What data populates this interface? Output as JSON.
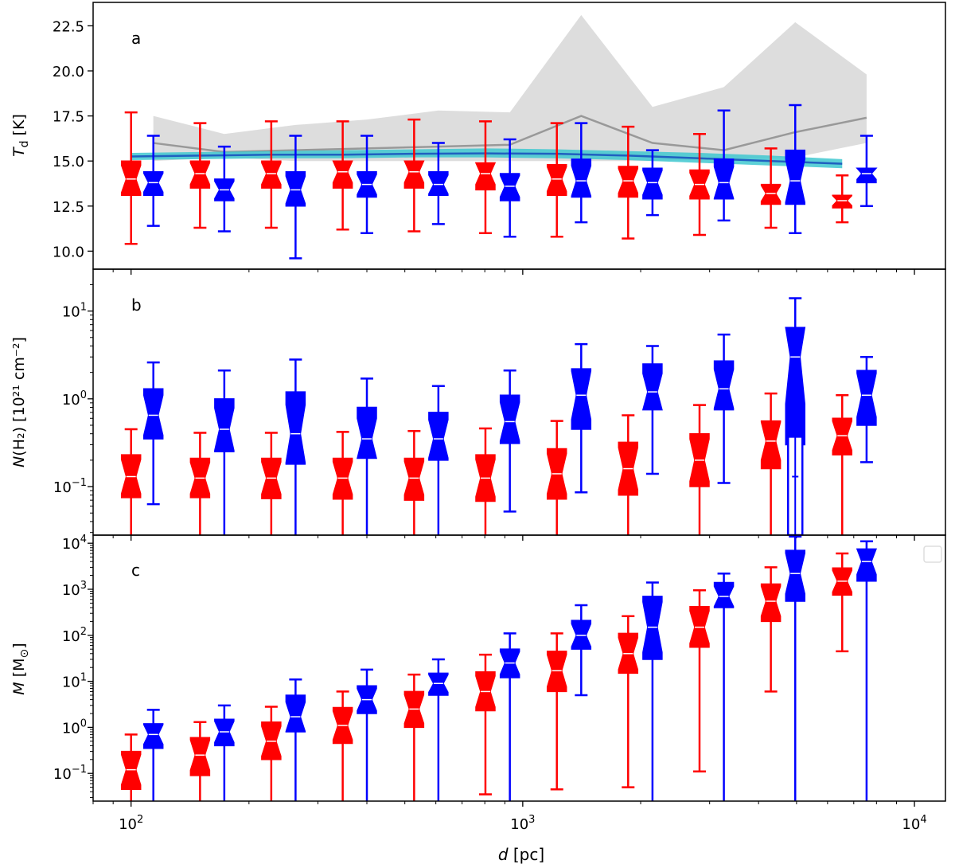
{
  "chart_data": {
    "type": "boxplot",
    "shared_x": {
      "label_var": "d",
      "label_unit": "[pc]",
      "scale": "log",
      "range": [
        80,
        12000
      ],
      "ticks": [
        100,
        1000,
        10000
      ],
      "tick_labels": [
        {
          "base": "10",
          "exp": "2"
        },
        {
          "base": "10",
          "exp": "3"
        },
        {
          "base": "10",
          "exp": "4"
        }
      ]
    },
    "colors": {
      "red": "#ff0000",
      "blue": "#0000ff",
      "gray": "#999999",
      "band": "#dddddd",
      "cyan": "#40c8d0",
      "darkblue": "#2060c0"
    },
    "panels": [
      {
        "id": "a",
        "label": "a",
        "ylabel_var": "T",
        "ylabel_sub": "d",
        "ylabel_unit": "[K]",
        "yscale": "linear",
        "ylim": [
          9.0,
          23.8
        ],
        "yticks": [
          10.0,
          12.5,
          15.0,
          17.5,
          20.0,
          22.5
        ],
        "ytick_labels": [
          "10.0",
          "12.5",
          "15.0",
          "17.5",
          "20.0",
          "22.5"
        ],
        "red": [
          {
            "d": 100,
            "whislo": 10.4,
            "q1": 13.1,
            "med": 14.0,
            "q3": 15.0,
            "whishi": 17.7
          },
          {
            "d": 150,
            "whislo": 11.3,
            "q1": 13.5,
            "med": 14.3,
            "q3": 15.0,
            "whishi": 17.1
          },
          {
            "d": 228,
            "whislo": 11.3,
            "q1": 13.5,
            "med": 14.3,
            "q3": 15.0,
            "whishi": 17.2
          },
          {
            "d": 347,
            "whislo": 11.2,
            "q1": 13.5,
            "med": 14.4,
            "q3": 15.0,
            "whishi": 17.2
          },
          {
            "d": 528,
            "whislo": 11.1,
            "q1": 13.5,
            "med": 14.4,
            "q3": 15.0,
            "whishi": 17.3
          },
          {
            "d": 803,
            "whislo": 11.0,
            "q1": 13.4,
            "med": 14.3,
            "q3": 14.9,
            "whishi": 17.2
          },
          {
            "d": 1222,
            "whislo": 10.8,
            "q1": 13.1,
            "med": 14.0,
            "q3": 14.8,
            "whishi": 17.1
          },
          {
            "d": 1858,
            "whislo": 10.7,
            "q1": 13.0,
            "med": 13.9,
            "q3": 14.7,
            "whishi": 16.9
          },
          {
            "d": 2827,
            "whislo": 10.9,
            "q1": 12.9,
            "med": 13.7,
            "q3": 14.5,
            "whishi": 16.5
          },
          {
            "d": 4300,
            "whislo": 11.3,
            "q1": 12.6,
            "med": 13.2,
            "q3": 13.7,
            "whishi": 15.7
          },
          {
            "d": 6540,
            "whislo": 11.6,
            "q1": 12.4,
            "med": 12.8,
            "q3": 13.1,
            "whishi": 14.2
          }
        ],
        "blue": [
          {
            "d": 114,
            "whislo": 11.4,
            "q1": 13.1,
            "med": 13.8,
            "q3": 14.4,
            "whishi": 16.4
          },
          {
            "d": 173,
            "whislo": 11.1,
            "q1": 12.8,
            "med": 13.4,
            "q3": 14.0,
            "whishi": 15.8
          },
          {
            "d": 263,
            "whislo": 9.6,
            "q1": 12.5,
            "med": 13.4,
            "q3": 14.4,
            "whishi": 16.4
          },
          {
            "d": 400,
            "whislo": 11.0,
            "q1": 13.0,
            "med": 13.7,
            "q3": 14.4,
            "whishi": 16.4
          },
          {
            "d": 609,
            "whislo": 11.5,
            "q1": 13.1,
            "med": 13.7,
            "q3": 14.4,
            "whishi": 16.0
          },
          {
            "d": 927,
            "whislo": 10.8,
            "q1": 12.8,
            "med": 13.6,
            "q3": 14.3,
            "whishi": 16.2
          },
          {
            "d": 1410,
            "whislo": 11.6,
            "q1": 13.0,
            "med": 13.9,
            "q3": 15.1,
            "whishi": 17.1
          },
          {
            "d": 2144,
            "whislo": 12.0,
            "q1": 12.9,
            "med": 13.8,
            "q3": 14.6,
            "whishi": 15.6
          },
          {
            "d": 3262,
            "whislo": 11.7,
            "q1": 12.9,
            "med": 13.8,
            "q3": 15.1,
            "whishi": 17.8
          },
          {
            "d": 4962,
            "whislo": 11.0,
            "q1": 12.6,
            "med": 13.9,
            "q3": 15.6,
            "whishi": 18.1
          },
          {
            "d": 7548,
            "whislo": 12.5,
            "q1": 13.8,
            "med": 14.3,
            "q3": 14.6,
            "whishi": 16.4
          }
        ],
        "gray_band": {
          "d": [
            114,
            173,
            263,
            400,
            609,
            927,
            1410,
            2144,
            3262,
            4962,
            7548
          ],
          "lower": [
            15.0,
            15.2,
            15.0,
            15.0,
            15.0,
            15.0,
            15.0,
            15.0,
            15.1,
            15.2,
            16.0
          ],
          "upper": [
            17.5,
            16.5,
            17.0,
            17.3,
            17.8,
            17.7,
            23.1,
            18.0,
            19.1,
            22.7,
            19.8
          ]
        },
        "gray_line": {
          "d": [
            114,
            173,
            263,
            400,
            609,
            927,
            1410,
            2144,
            3262,
            4962,
            7548
          ],
          "y": [
            16.0,
            15.5,
            15.6,
            15.7,
            15.8,
            15.9,
            17.5,
            16.0,
            15.6,
            16.6,
            17.4
          ]
        },
        "cyan_band": {
          "d": [
            100,
            150,
            228,
            347,
            528,
            803,
            1222,
            1858,
            2827,
            4300,
            6540
          ],
          "lower": [
            15.05,
            15.1,
            15.15,
            15.15,
            15.2,
            15.2,
            15.15,
            15.05,
            14.9,
            14.75,
            14.6
          ],
          "upper": [
            15.45,
            15.5,
            15.55,
            15.6,
            15.65,
            15.7,
            15.65,
            15.55,
            15.45,
            15.3,
            15.1
          ]
        },
        "blue_line": {
          "d": [
            100,
            150,
            228,
            347,
            528,
            803,
            1222,
            1858,
            2827,
            4300,
            6540
          ],
          "y": [
            15.25,
            15.3,
            15.35,
            15.35,
            15.4,
            15.42,
            15.4,
            15.3,
            15.15,
            15.0,
            14.85
          ]
        }
      },
      {
        "id": "b",
        "label": "b",
        "ylabel_var": "N",
        "ylabel_unit_html": "(H₂) [10²¹ cm⁻²]",
        "yscale": "log",
        "ylim": [
          0.028,
          30
        ],
        "yticks": [
          0.1,
          1,
          10
        ],
        "ytick_labels": [
          {
            "base": "10",
            "exp": "−1"
          },
          {
            "base": "10",
            "exp": "0"
          },
          {
            "base": "10",
            "exp": "1"
          }
        ],
        "red": [
          {
            "d": 100,
            "whislo": 0.028,
            "q1": 0.075,
            "med": 0.13,
            "q3": 0.23,
            "whishi": 0.45
          },
          {
            "d": 150,
            "whislo": 0.028,
            "q1": 0.075,
            "med": 0.125,
            "q3": 0.21,
            "whishi": 0.41
          },
          {
            "d": 228,
            "whislo": 0.028,
            "q1": 0.073,
            "med": 0.125,
            "q3": 0.21,
            "whishi": 0.41
          },
          {
            "d": 347,
            "whislo": 0.028,
            "q1": 0.072,
            "med": 0.125,
            "q3": 0.21,
            "whishi": 0.42
          },
          {
            "d": 528,
            "whislo": 0.028,
            "q1": 0.07,
            "med": 0.125,
            "q3": 0.21,
            "whishi": 0.43
          },
          {
            "d": 803,
            "whislo": 0.028,
            "q1": 0.068,
            "med": 0.125,
            "q3": 0.23,
            "whishi": 0.46
          },
          {
            "d": 1222,
            "whislo": 0.028,
            "q1": 0.072,
            "med": 0.14,
            "q3": 0.27,
            "whishi": 0.56
          },
          {
            "d": 1858,
            "whislo": 0.028,
            "q1": 0.08,
            "med": 0.16,
            "q3": 0.32,
            "whishi": 0.65
          },
          {
            "d": 2827,
            "whislo": 0.028,
            "q1": 0.1,
            "med": 0.2,
            "q3": 0.4,
            "whishi": 0.85
          },
          {
            "d": 4300,
            "whislo": 0.028,
            "q1": 0.16,
            "med": 0.33,
            "q3": 0.56,
            "whishi": 1.15
          },
          {
            "d": 6540,
            "whislo": 0.028,
            "q1": 0.23,
            "med": 0.38,
            "q3": 0.6,
            "whishi": 1.1
          }
        ],
        "blue": [
          {
            "d": 114,
            "whislo": 0.063,
            "q1": 0.35,
            "med": 0.65,
            "q3": 1.3,
            "whishi": 2.6
          },
          {
            "d": 173,
            "whislo": 0.028,
            "q1": 0.25,
            "med": 0.45,
            "q3": 1.0,
            "whishi": 2.1
          },
          {
            "d": 263,
            "whislo": 0.028,
            "q1": 0.18,
            "med": 0.4,
            "q3": 1.2,
            "whishi": 2.8
          },
          {
            "d": 400,
            "whislo": 0.028,
            "q1": 0.21,
            "med": 0.35,
            "q3": 0.8,
            "whishi": 1.7
          },
          {
            "d": 609,
            "whislo": 0.028,
            "q1": 0.2,
            "med": 0.35,
            "q3": 0.7,
            "whishi": 1.4
          },
          {
            "d": 927,
            "whislo": 0.052,
            "q1": 0.31,
            "med": 0.55,
            "q3": 1.1,
            "whishi": 2.1
          },
          {
            "d": 1410,
            "whislo": 0.086,
            "q1": 0.45,
            "med": 1.1,
            "q3": 2.2,
            "whishi": 4.2
          },
          {
            "d": 2144,
            "whislo": 0.14,
            "q1": 0.75,
            "med": 1.2,
            "q3": 2.5,
            "whishi": 4.0
          },
          {
            "d": 3262,
            "whislo": 0.11,
            "q1": 0.75,
            "med": 1.3,
            "q3": 2.7,
            "whishi": 5.4
          },
          {
            "d": 4962,
            "whislo": 0.028,
            "q1": 0.3,
            "med": 3.0,
            "q3": 6.5,
            "whishi": 14.0
          },
          {
            "d": 7548,
            "whislo": 0.19,
            "q1": 0.5,
            "med": 1.1,
            "q3": 2.1,
            "whishi": 3.0
          }
        ],
        "hollow_box": {
          "d": 4962,
          "q1": 0.028,
          "mid": 0.13,
          "q3": 0.37
        }
      },
      {
        "id": "c",
        "label": "c",
        "ylabel_var": "M",
        "ylabel_unit": "[M",
        "ylabel_sub": "⊙",
        "ylabel_close": "]",
        "yscale": "log",
        "ylim": [
          0.025,
          15000
        ],
        "yticks": [
          0.1,
          1,
          10,
          100,
          1000,
          10000
        ],
        "ytick_labels": [
          {
            "base": "10",
            "exp": "−1"
          },
          {
            "base": "10",
            "exp": "0"
          },
          {
            "base": "10",
            "exp": "1"
          },
          {
            "base": "10",
            "exp": "2"
          },
          {
            "base": "10",
            "exp": "3"
          },
          {
            "base": "10",
            "exp": "4"
          }
        ],
        "red": [
          {
            "d": 100,
            "whislo": 0.025,
            "q1": 0.045,
            "med": 0.12,
            "q3": 0.3,
            "whishi": 0.7
          },
          {
            "d": 150,
            "whislo": 0.025,
            "q1": 0.09,
            "med": 0.25,
            "q3": 0.6,
            "whishi": 1.3
          },
          {
            "d": 228,
            "whislo": 0.025,
            "q1": 0.2,
            "med": 0.5,
            "q3": 1.3,
            "whishi": 2.8
          },
          {
            "d": 347,
            "whislo": 0.025,
            "q1": 0.45,
            "med": 1.1,
            "q3": 2.7,
            "whishi": 6.0
          },
          {
            "d": 528,
            "whislo": 0.025,
            "q1": 1.0,
            "med": 2.5,
            "q3": 6.0,
            "whishi": 14.0
          },
          {
            "d": 803,
            "whislo": 0.035,
            "q1": 2.3,
            "med": 6.0,
            "q3": 16.0,
            "whishi": 38.0
          },
          {
            "d": 1222,
            "whislo": 0.045,
            "q1": 6.0,
            "med": 17.0,
            "q3": 45.0,
            "whishi": 110.0
          },
          {
            "d": 1858,
            "whislo": 0.05,
            "q1": 15.0,
            "med": 40.0,
            "q3": 110.0,
            "whishi": 260.0
          },
          {
            "d": 2827,
            "whislo": 0.11,
            "q1": 55.0,
            "med": 150.0,
            "q3": 420.0,
            "whishi": 950.0
          },
          {
            "d": 4300,
            "whislo": 6.0,
            "q1": 200.0,
            "med": 550.0,
            "q3": 1300.0,
            "whishi": 3000.0
          },
          {
            "d": 6540,
            "whislo": 45.0,
            "q1": 750.0,
            "med": 1500.0,
            "q3": 2900.0,
            "whishi": 6000.0
          }
        ],
        "blue": [
          {
            "d": 114,
            "whislo": 0.025,
            "q1": 0.35,
            "med": 0.7,
            "q3": 1.2,
            "whishi": 2.4
          },
          {
            "d": 173,
            "whislo": 0.025,
            "q1": 0.4,
            "med": 0.8,
            "q3": 1.5,
            "whishi": 3.0
          },
          {
            "d": 263,
            "whislo": 0.025,
            "q1": 0.8,
            "med": 1.7,
            "q3": 5.0,
            "whishi": 11.0
          },
          {
            "d": 400,
            "whislo": 0.025,
            "q1": 2.0,
            "med": 4.0,
            "q3": 8.0,
            "whishi": 18.0
          },
          {
            "d": 609,
            "whislo": 0.025,
            "q1": 5.0,
            "med": 9.0,
            "q3": 15.0,
            "whishi": 30.0
          },
          {
            "d": 927,
            "whislo": 0.025,
            "q1": 12.0,
            "med": 25.0,
            "q3": 50.0,
            "whishi": 110.0
          },
          {
            "d": 1410,
            "whislo": 5.0,
            "q1": 50.0,
            "med": 100.0,
            "q3": 210.0,
            "whishi": 450.0
          },
          {
            "d": 2144,
            "whislo": 0.025,
            "q1": 30.0,
            "med": 150.0,
            "q3": 700.0,
            "whishi": 1400.0
          },
          {
            "d": 3262,
            "whislo": 0.025,
            "q1": 400.0,
            "med": 700.0,
            "q3": 1400.0,
            "whishi": 2200.0
          },
          {
            "d": 4962,
            "whislo": 0.025,
            "q1": 550.0,
            "med": 2200.0,
            "q3": 7000.0,
            "whishi": 14000.0
          },
          {
            "d": 7548,
            "whislo": 0.025,
            "q1": 1500.0,
            "med": 4000.0,
            "q3": 7500.0,
            "whishi": 11000.0
          }
        ]
      }
    ]
  }
}
